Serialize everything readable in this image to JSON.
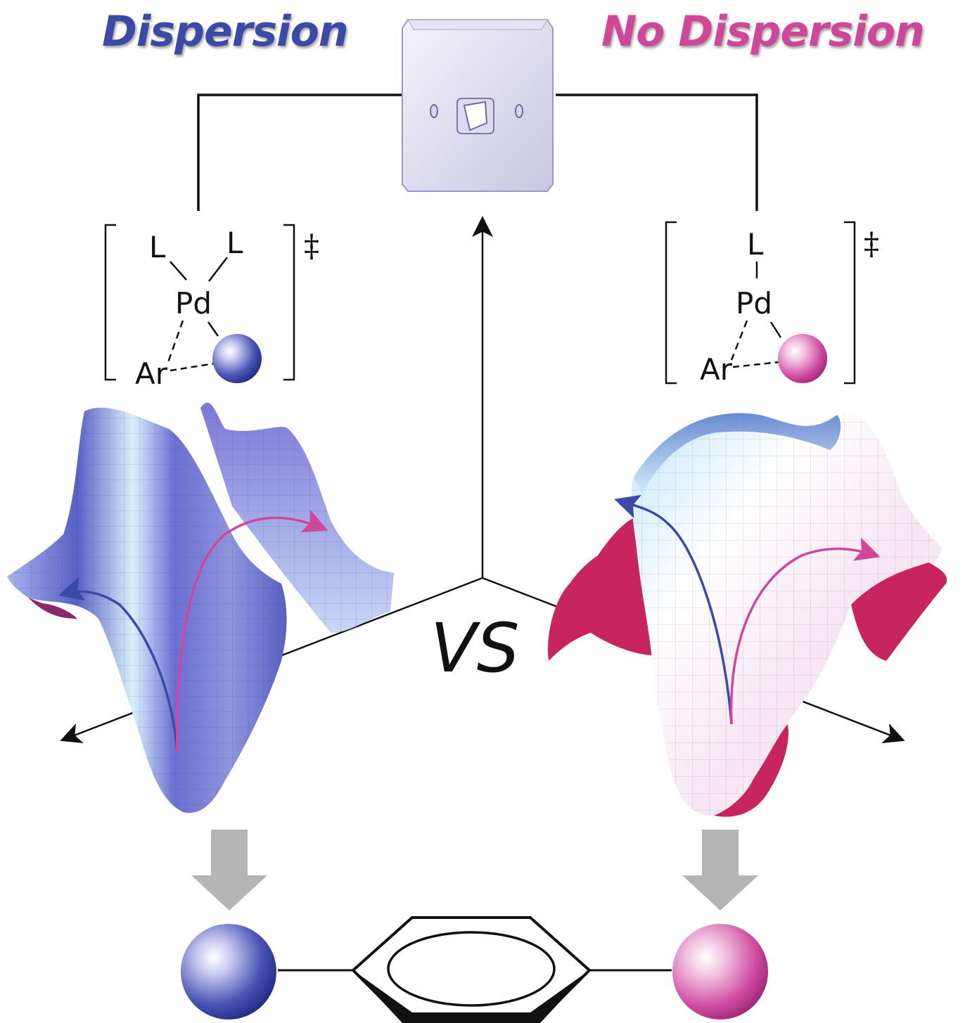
{
  "titles": {
    "left": "Dispersion",
    "right": "No Dispersion"
  },
  "colors": {
    "dispersion": "#3a4aa6",
    "no_dispersion": "#d0479a",
    "surface_blue": "#6f6fd0",
    "surface_magenta": "#c8245e",
    "gray_arrow": "#b5b5b5"
  },
  "left_transition_state": {
    "ligand_1": "L",
    "ligand_2": "L",
    "metal": "Pd",
    "aryl": "Ar",
    "marker": "‡"
  },
  "right_transition_state": {
    "ligand": "L",
    "metal": "Pd",
    "aryl": "Ar",
    "marker": "‡"
  },
  "center_label": "VS",
  "icons": {
    "switch": "light-switch-icon"
  }
}
